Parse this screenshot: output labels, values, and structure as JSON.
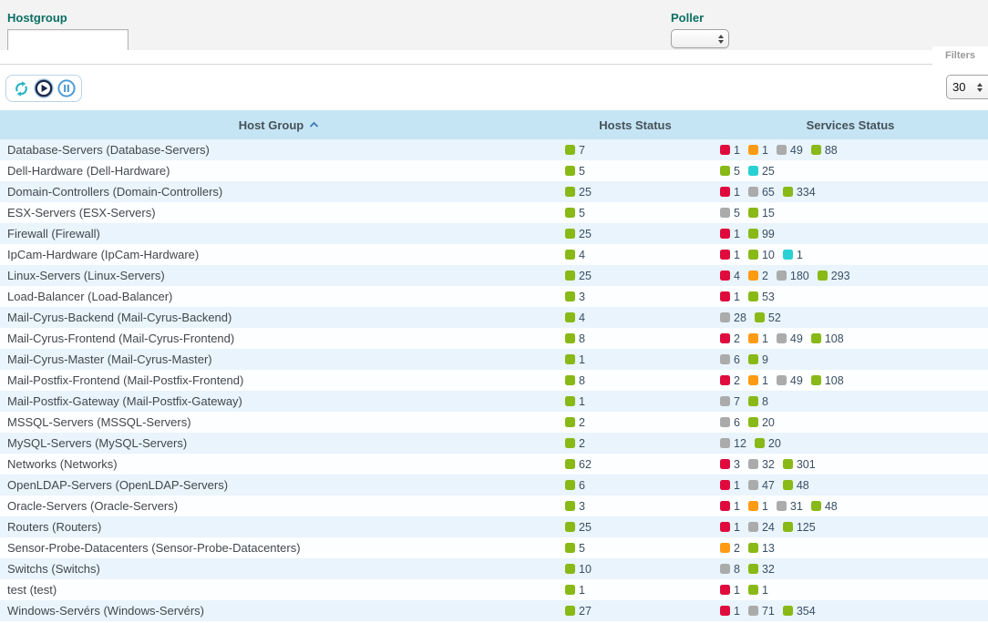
{
  "filter_panel": {
    "hostgroup": {
      "label": "Hostgroup",
      "value": ""
    },
    "poller": {
      "label": "Poller",
      "value": ""
    },
    "filters_tab_label": "Filters"
  },
  "toolbar": {
    "icons": [
      "refresh",
      "play",
      "pause"
    ],
    "page_size": "30"
  },
  "table": {
    "headers": {
      "host_group": "Host Group",
      "hosts_status": "Hosts Status",
      "services_status": "Services Status"
    },
    "sort": {
      "column": "Host Group",
      "direction": "ascending"
    },
    "rows": [
      {
        "name": "Database-Servers (Database-Servers)",
        "hosts": [
          {
            "state": "up",
            "count": 7
          }
        ],
        "services": [
          {
            "state": "critical",
            "count": 1
          },
          {
            "state": "warning",
            "count": 1
          },
          {
            "state": "unknown",
            "count": 49
          },
          {
            "state": "ok",
            "count": 88
          }
        ]
      },
      {
        "name": "Dell-Hardware (Dell-Hardware)",
        "hosts": [
          {
            "state": "up",
            "count": 5
          }
        ],
        "services": [
          {
            "state": "ok",
            "count": 5
          },
          {
            "state": "pending",
            "count": 25
          }
        ]
      },
      {
        "name": "Domain-Controllers (Domain-Controllers)",
        "hosts": [
          {
            "state": "up",
            "count": 25
          }
        ],
        "services": [
          {
            "state": "critical",
            "count": 1
          },
          {
            "state": "unknown",
            "count": 65
          },
          {
            "state": "ok",
            "count": 334
          }
        ]
      },
      {
        "name": "ESX-Servers (ESX-Servers)",
        "hosts": [
          {
            "state": "up",
            "count": 5
          }
        ],
        "services": [
          {
            "state": "unknown",
            "count": 5
          },
          {
            "state": "ok",
            "count": 15
          }
        ]
      },
      {
        "name": "Firewall (Firewall)",
        "hosts": [
          {
            "state": "up",
            "count": 25
          }
        ],
        "services": [
          {
            "state": "critical",
            "count": 1
          },
          {
            "state": "ok",
            "count": 99
          }
        ]
      },
      {
        "name": "IpCam-Hardware (IpCam-Hardware)",
        "hosts": [
          {
            "state": "up",
            "count": 4
          }
        ],
        "services": [
          {
            "state": "critical",
            "count": 1
          },
          {
            "state": "ok",
            "count": 10
          },
          {
            "state": "pending",
            "count": 1
          }
        ]
      },
      {
        "name": "Linux-Servers (Linux-Servers)",
        "hosts": [
          {
            "state": "up",
            "count": 25
          }
        ],
        "services": [
          {
            "state": "critical",
            "count": 4
          },
          {
            "state": "warning",
            "count": 2
          },
          {
            "state": "unknown",
            "count": 180
          },
          {
            "state": "ok",
            "count": 293
          }
        ]
      },
      {
        "name": "Load-Balancer (Load-Balancer)",
        "hosts": [
          {
            "state": "up",
            "count": 3
          }
        ],
        "services": [
          {
            "state": "critical",
            "count": 1
          },
          {
            "state": "ok",
            "count": 53
          }
        ]
      },
      {
        "name": "Mail-Cyrus-Backend (Mail-Cyrus-Backend)",
        "hosts": [
          {
            "state": "up",
            "count": 4
          }
        ],
        "services": [
          {
            "state": "unknown",
            "count": 28
          },
          {
            "state": "ok",
            "count": 52
          }
        ]
      },
      {
        "name": "Mail-Cyrus-Frontend (Mail-Cyrus-Frontend)",
        "hosts": [
          {
            "state": "up",
            "count": 8
          }
        ],
        "services": [
          {
            "state": "critical",
            "count": 2
          },
          {
            "state": "warning",
            "count": 1
          },
          {
            "state": "unknown",
            "count": 49
          },
          {
            "state": "ok",
            "count": 108
          }
        ]
      },
      {
        "name": "Mail-Cyrus-Master (Mail-Cyrus-Master)",
        "hosts": [
          {
            "state": "up",
            "count": 1
          }
        ],
        "services": [
          {
            "state": "unknown",
            "count": 6
          },
          {
            "state": "ok",
            "count": 9
          }
        ]
      },
      {
        "name": "Mail-Postfix-Frontend (Mail-Postfix-Frontend)",
        "hosts": [
          {
            "state": "up",
            "count": 8
          }
        ],
        "services": [
          {
            "state": "critical",
            "count": 2
          },
          {
            "state": "warning",
            "count": 1
          },
          {
            "state": "unknown",
            "count": 49
          },
          {
            "state": "ok",
            "count": 108
          }
        ]
      },
      {
        "name": "Mail-Postfix-Gateway (Mail-Postfix-Gateway)",
        "hosts": [
          {
            "state": "up",
            "count": 1
          }
        ],
        "services": [
          {
            "state": "unknown",
            "count": 7
          },
          {
            "state": "ok",
            "count": 8
          }
        ]
      },
      {
        "name": "MSSQL-Servers (MSSQL-Servers)",
        "hosts": [
          {
            "state": "up",
            "count": 2
          }
        ],
        "services": [
          {
            "state": "unknown",
            "count": 6
          },
          {
            "state": "ok",
            "count": 20
          }
        ]
      },
      {
        "name": "MySQL-Servers (MySQL-Servers)",
        "hosts": [
          {
            "state": "up",
            "count": 2
          }
        ],
        "services": [
          {
            "state": "unknown",
            "count": 12
          },
          {
            "state": "ok",
            "count": 20
          }
        ]
      },
      {
        "name": "Networks (Networks)",
        "hosts": [
          {
            "state": "up",
            "count": 62
          }
        ],
        "services": [
          {
            "state": "critical",
            "count": 3
          },
          {
            "state": "unknown",
            "count": 32
          },
          {
            "state": "ok",
            "count": 301
          }
        ]
      },
      {
        "name": "OpenLDAP-Servers (OpenLDAP-Servers)",
        "hosts": [
          {
            "state": "up",
            "count": 6
          }
        ],
        "services": [
          {
            "state": "critical",
            "count": 1
          },
          {
            "state": "unknown",
            "count": 47
          },
          {
            "state": "ok",
            "count": 48
          }
        ]
      },
      {
        "name": "Oracle-Servers (Oracle-Servers)",
        "hosts": [
          {
            "state": "up",
            "count": 3
          }
        ],
        "services": [
          {
            "state": "critical",
            "count": 1
          },
          {
            "state": "warning",
            "count": 1
          },
          {
            "state": "unknown",
            "count": 31
          },
          {
            "state": "ok",
            "count": 48
          }
        ]
      },
      {
        "name": "Routers (Routers)",
        "hosts": [
          {
            "state": "up",
            "count": 25
          }
        ],
        "services": [
          {
            "state": "critical",
            "count": 1
          },
          {
            "state": "unknown",
            "count": 24
          },
          {
            "state": "ok",
            "count": 125
          }
        ]
      },
      {
        "name": "Sensor-Probe-Datacenters (Sensor-Probe-Datacenters)",
        "hosts": [
          {
            "state": "up",
            "count": 5
          }
        ],
        "services": [
          {
            "state": "warning",
            "count": 2
          },
          {
            "state": "ok",
            "count": 13
          }
        ]
      },
      {
        "name": "Switchs (Switchs)",
        "hosts": [
          {
            "state": "up",
            "count": 10
          }
        ],
        "services": [
          {
            "state": "unknown",
            "count": 8
          },
          {
            "state": "ok",
            "count": 32
          }
        ]
      },
      {
        "name": "test (test)",
        "hosts": [
          {
            "state": "up",
            "count": 1
          }
        ],
        "services": [
          {
            "state": "critical",
            "count": 1
          },
          {
            "state": "ok",
            "count": 1
          }
        ]
      },
      {
        "name": "Windows-Servérs (Windows-Servérs)",
        "hosts": [
          {
            "state": "up",
            "count": 27
          }
        ],
        "services": [
          {
            "state": "critical",
            "count": 1
          },
          {
            "state": "unknown",
            "count": 71
          },
          {
            "state": "ok",
            "count": 354
          }
        ]
      }
    ]
  },
  "status_colors": {
    "up": "#88b917",
    "ok": "#88b917",
    "critical": "#e00b3d",
    "warning": "#ff9a13",
    "unknown": "#ababab",
    "pending": "#2ad1d4"
  }
}
